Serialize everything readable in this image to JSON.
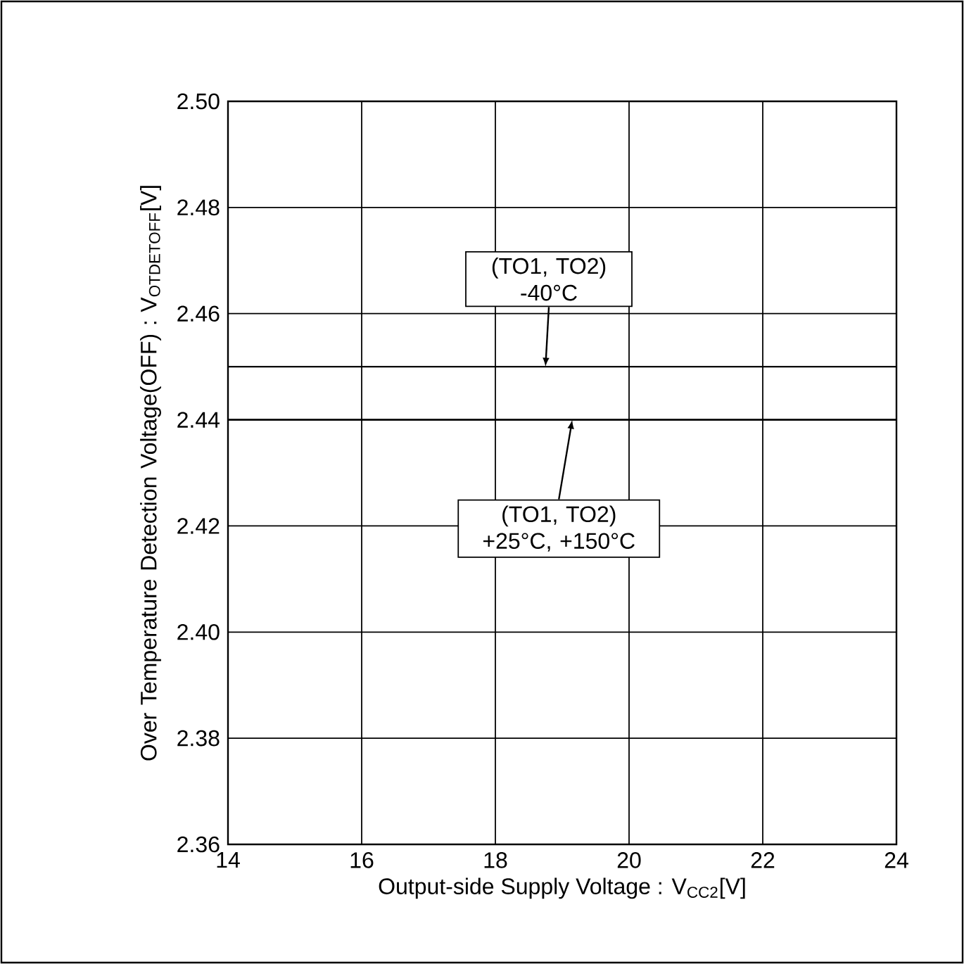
{
  "chart_data": {
    "type": "line",
    "xlabel": "Output-side Supply Voltage : V$_{CC2}$[V]",
    "ylabel": "Over Temperature Detection Voltage(OFF) : V$_{OTDETOFF}$[V]",
    "xlim": [
      14,
      24
    ],
    "ylim": [
      2.36,
      2.5
    ],
    "xticks": [
      14,
      16,
      18,
      20,
      22,
      24
    ],
    "yticks": [
      2.36,
      2.38,
      {
        "value": 2.4,
        "label": "2.40"
      },
      2.42,
      2.44,
      2.46,
      2.48,
      {
        "value": 2.5,
        "label": "2.50"
      }
    ],
    "grid": true,
    "ref_lines": [
      {
        "axis": "y",
        "value": 2.45,
        "color": "#000000",
        "line_style": "solid"
      },
      {
        "axis": "y",
        "value": 2.44,
        "color": "#000000",
        "line_style": "solid"
      }
    ],
    "annotations": [
      {
        "text": "(TO1, TO2) -40°C",
        "x": 18.75,
        "y": 2.45
      },
      {
        "text": "(TO1, TO2) +25°C, +150°C",
        "x": 19.15,
        "y": 2.44
      }
    ]
  }
}
